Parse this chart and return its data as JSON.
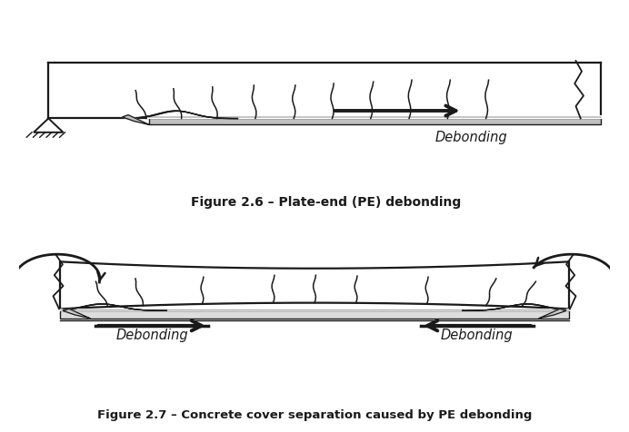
{
  "fig_width": 6.92,
  "fig_height": 4.76,
  "dpi": 100,
  "bg_color": "#ffffff",
  "fig1_caption": "Figure 2.6 – Plate-end (PE) debonding",
  "fig2_caption": "Figure 2.7 – Concrete cover separation caused by PE debonding",
  "debonding_label": "Debonding",
  "line_color": "#1a1a1a"
}
